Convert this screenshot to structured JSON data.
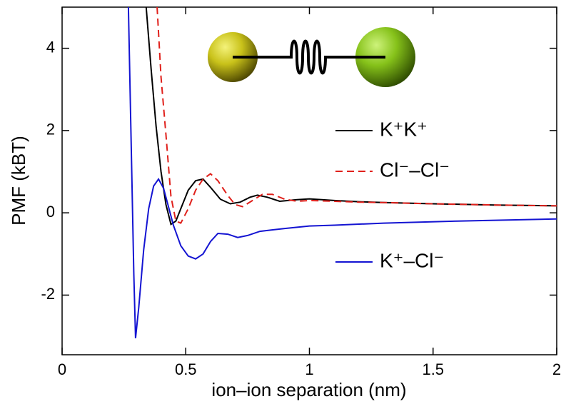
{
  "chart_data": {
    "type": "line",
    "x_label": "ion–ion separation (nm)",
    "y_label": "PMF (kBT)",
    "xlim": [
      0,
      2
    ],
    "xticks": [
      0,
      {
        "value": 0.5,
        "label": "0.5"
      },
      1,
      {
        "value": 1.5,
        "label": "1.5"
      },
      2
    ],
    "ylim": [
      -3.45,
      5
    ],
    "yticks": [
      -2,
      0,
      2,
      4
    ],
    "legend": "right",
    "series": [
      {
        "name": "K⁺K⁺",
        "color": "#000000",
        "dash": false,
        "x": [
          0.34,
          0.36,
          0.38,
          0.4,
          0.42,
          0.44,
          0.46,
          0.48,
          0.51,
          0.54,
          0.57,
          0.6,
          0.64,
          0.68,
          0.72,
          0.76,
          0.79,
          0.83,
          0.88,
          0.95,
          1.0,
          1.1,
          1.2,
          1.3,
          1.5,
          1.75,
          2.0
        ],
        "values": [
          5,
          3.5,
          2.1,
          1.0,
          0.2,
          -0.28,
          -0.2,
          0.1,
          0.55,
          0.78,
          0.82,
          0.62,
          0.33,
          0.22,
          0.26,
          0.38,
          0.43,
          0.38,
          0.28,
          0.32,
          0.34,
          0.3,
          0.27,
          0.25,
          0.22,
          0.19,
          0.17
        ]
      },
      {
        "name": "Cl⁻–Cl⁻",
        "color": "#e0201b",
        "dash": true,
        "x": [
          0.384,
          0.4,
          0.42,
          0.44,
          0.46,
          0.48,
          0.51,
          0.54,
          0.57,
          0.6,
          0.63,
          0.67,
          0.7,
          0.73,
          0.77,
          0.81,
          0.85,
          0.9,
          0.95,
          1.0,
          1.1,
          1.2,
          1.3,
          1.5,
          1.75,
          2.0
        ],
        "values": [
          5,
          3.3,
          1.9,
          0.4,
          -0.2,
          -0.25,
          0.1,
          0.55,
          0.82,
          0.95,
          0.78,
          0.42,
          0.2,
          0.15,
          0.3,
          0.45,
          0.45,
          0.33,
          0.28,
          0.3,
          0.28,
          0.26,
          0.25,
          0.22,
          0.19,
          0.17
        ]
      },
      {
        "name": "K⁺–Cl⁻",
        "color": "#1414d2",
        "dash": false,
        "x": [
          0.268,
          0.28,
          0.29,
          0.297,
          0.31,
          0.33,
          0.35,
          0.37,
          0.39,
          0.41,
          0.43,
          0.45,
          0.48,
          0.51,
          0.54,
          0.57,
          0.6,
          0.63,
          0.67,
          0.71,
          0.75,
          0.8,
          0.9,
          1.0,
          1.1,
          1.3,
          1.6,
          2.0
        ],
        "values": [
          5,
          1.5,
          -1.5,
          -3.05,
          -2.3,
          -0.9,
          0.1,
          0.65,
          0.82,
          0.6,
          0.15,
          -0.3,
          -0.8,
          -1.05,
          -1.12,
          -1.0,
          -0.7,
          -0.5,
          -0.52,
          -0.6,
          -0.55,
          -0.45,
          -0.38,
          -0.32,
          -0.3,
          -0.25,
          -0.2,
          -0.15
        ]
      }
    ]
  }
}
